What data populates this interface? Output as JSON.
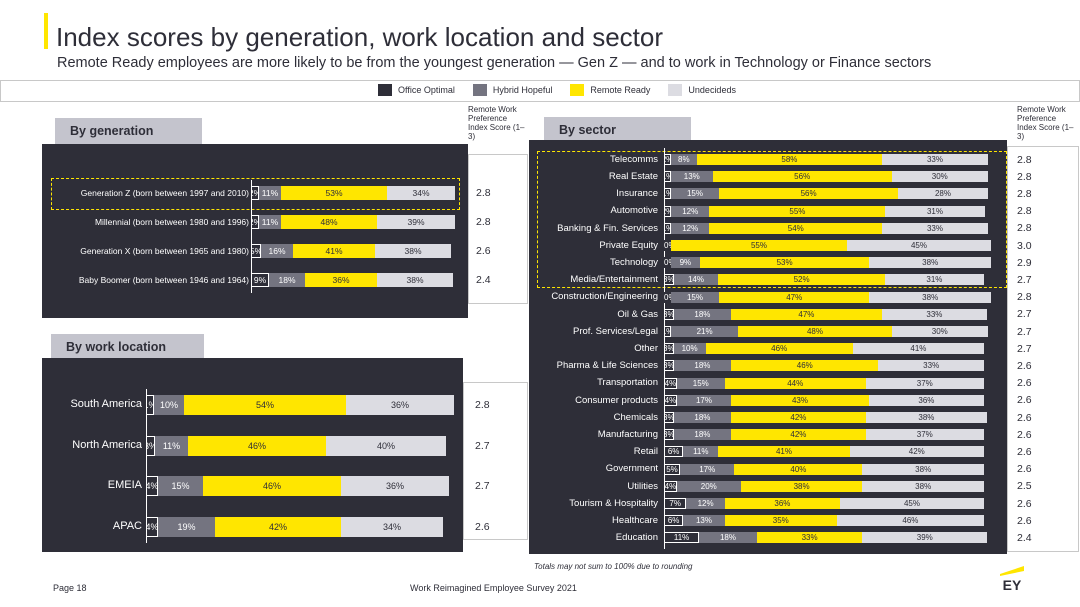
{
  "title": "Index scores by generation, work location and sector",
  "subtitle": "Remote Ready employees are more likely to be from the youngest generation — Gen Z — and to work in Technology or Finance sectors",
  "legend": [
    {
      "label": "Office Optimal",
      "color": "#2e2e38"
    },
    {
      "label": "Hybrid Hopeful",
      "color": "#747480"
    },
    {
      "label": "Remote Ready",
      "color": "#ffe600"
    },
    {
      "label": "Undecideds",
      "color": "#dcdce2"
    }
  ],
  "score_header": "Remote Work Preference Index Score (1–3)",
  "footnote": "Totals may not sum to 100% due to rounding",
  "page_label": "Page 18",
  "survey_label": "Work Reimagined Employee Survey 2021",
  "logo_text": "EY",
  "chart_data": [
    {
      "type": "bar",
      "stacked": true,
      "orientation": "horizontal",
      "title": "By generation",
      "categories": [
        "Generation Z (born between 1997 and 2010)",
        "Millennial (born between 1980 and 1996)",
        "Generation X (born between 1965 and 1980)",
        "Baby Boomer (born between 1946 and 1964)"
      ],
      "labels": [
        [
          "2%",
          "11%",
          "53%",
          "34%"
        ],
        [
          "2%",
          "11%",
          "48%",
          "39%"
        ],
        [
          "5%",
          "16%",
          "41%",
          "38%"
        ],
        [
          "9%",
          "18%",
          "36%",
          "38%"
        ]
      ],
      "series": [
        {
          "name": "Office Optimal",
          "values": [
            2,
            2,
            5,
            9
          ]
        },
        {
          "name": "Hybrid Hopeful",
          "values": [
            11,
            11,
            16,
            18
          ]
        },
        {
          "name": "Remote Ready",
          "values": [
            53,
            48,
            41,
            36
          ]
        },
        {
          "name": "Undecideds",
          "values": [
            34,
            39,
            38,
            38
          ]
        }
      ],
      "scores": [
        "2.8",
        "2.8",
        "2.6",
        "2.4"
      ],
      "highlight": [
        0
      ]
    },
    {
      "type": "bar",
      "stacked": true,
      "orientation": "horizontal",
      "title": "By work location",
      "categories": [
        "South America",
        "North America",
        "EMEIA",
        "APAC"
      ],
      "labels": [
        [
          "1%",
          "10%",
          "54%",
          "36%"
        ],
        [
          "3%",
          "11%",
          "46%",
          "40%"
        ],
        [
          "4%",
          "15%",
          "46%",
          "36%"
        ],
        [
          "4%",
          "19%",
          "42%",
          "34%"
        ]
      ],
      "series": [
        {
          "name": "Office Optimal",
          "values": [
            1,
            3,
            4,
            4
          ]
        },
        {
          "name": "Hybrid Hopeful",
          "values": [
            10,
            11,
            15,
            19
          ]
        },
        {
          "name": "Remote Ready",
          "values": [
            54,
            46,
            46,
            42
          ]
        },
        {
          "name": "Undecideds",
          "values": [
            36,
            40,
            36,
            34
          ]
        }
      ],
      "scores": [
        "2.8",
        "2.7",
        "2.7",
        "2.6"
      ]
    },
    {
      "type": "bar",
      "stacked": true,
      "orientation": "horizontal",
      "title": "By sector",
      "categories": [
        "Telecomms",
        "Real Estate",
        "Insurance",
        "Automotive",
        "Banking & Fin. Services",
        "Private Equity",
        "Technology",
        "Media/Entertainment",
        "Construction/Engineering",
        "Oil & Gas",
        "Prof. Services/Legal",
        "Other",
        "Pharma & Life Sciences",
        "Transportation",
        "Consumer products",
        "Chemicals",
        "Manufacturing",
        "Retail",
        "Government",
        "Utilities",
        "Tourism & Hospitality",
        "Healthcare",
        "Education"
      ],
      "labels": [
        [
          "2%",
          "8%",
          "58%",
          "33%"
        ],
        [
          "1%",
          "13%",
          "56%",
          "30%"
        ],
        [
          "1%",
          "15%",
          "56%",
          "28%"
        ],
        [
          "2%",
          "12%",
          "55%",
          "31%"
        ],
        [
          "1%",
          "12%",
          "54%",
          "33%"
        ],
        [
          "0%",
          "",
          "55%",
          "45%"
        ],
        [
          "0%",
          "9%",
          "53%",
          "38%"
        ],
        [
          "3%",
          "14%",
          "52%",
          "31%"
        ],
        [
          "0%",
          "15%",
          "47%",
          "38%"
        ],
        [
          "3%",
          "18%",
          "47%",
          "33%"
        ],
        [
          "1%",
          "21%",
          "48%",
          "30%"
        ],
        [
          "3%",
          "10%",
          "46%",
          "41%"
        ],
        [
          "3%",
          "18%",
          "46%",
          "33%"
        ],
        [
          "4%",
          "15%",
          "44%",
          "37%"
        ],
        [
          "4%",
          "17%",
          "43%",
          "36%"
        ],
        [
          "3%",
          "18%",
          "42%",
          "38%"
        ],
        [
          "3%",
          "18%",
          "42%",
          "37%"
        ],
        [
          "6%",
          "11%",
          "41%",
          "42%"
        ],
        [
          "5%",
          "17%",
          "40%",
          "38%"
        ],
        [
          "4%",
          "20%",
          "38%",
          "38%"
        ],
        [
          "7%",
          "12%",
          "36%",
          "45%"
        ],
        [
          "6%",
          "13%",
          "35%",
          "46%"
        ],
        [
          "11%",
          "18%",
          "33%",
          "39%"
        ]
      ],
      "series": [
        {
          "name": "Office Optimal",
          "values": [
            2,
            1,
            1,
            2,
            1,
            0,
            0,
            3,
            0,
            3,
            1,
            3,
            3,
            4,
            4,
            3,
            3,
            6,
            5,
            4,
            7,
            6,
            11
          ]
        },
        {
          "name": "Hybrid Hopeful",
          "values": [
            8,
            13,
            15,
            12,
            12,
            0,
            9,
            14,
            15,
            18,
            21,
            10,
            18,
            15,
            17,
            18,
            18,
            11,
            17,
            20,
            12,
            13,
            18
          ]
        },
        {
          "name": "Remote Ready",
          "values": [
            58,
            56,
            56,
            55,
            54,
            55,
            53,
            52,
            47,
            47,
            48,
            46,
            46,
            44,
            43,
            42,
            42,
            41,
            40,
            38,
            36,
            35,
            33
          ]
        },
        {
          "name": "Undecideds",
          "values": [
            33,
            30,
            28,
            31,
            33,
            45,
            38,
            31,
            38,
            33,
            30,
            41,
            33,
            37,
            36,
            38,
            37,
            42,
            38,
            38,
            45,
            46,
            39
          ]
        }
      ],
      "scores": [
        "2.8",
        "2.8",
        "2.8",
        "2.8",
        "2.8",
        "3.0",
        "2.9",
        "2.7",
        "2.8",
        "2.7",
        "2.7",
        "2.7",
        "2.6",
        "2.6",
        "2.6",
        "2.6",
        "2.6",
        "2.6",
        "2.6",
        "2.5",
        "2.6",
        "2.6",
        "2.4"
      ],
      "highlight": [
        0,
        1,
        2,
        3,
        4,
        5,
        6,
        7
      ]
    }
  ]
}
